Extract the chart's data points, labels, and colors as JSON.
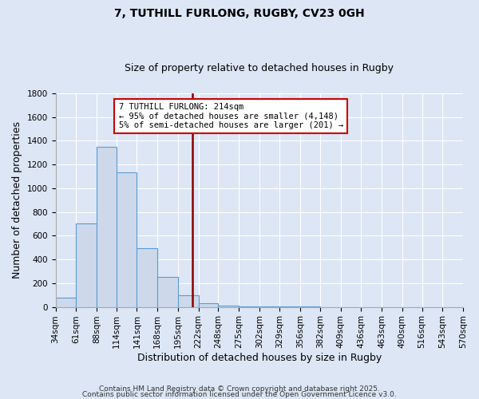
{
  "title_line1": "7, TUTHILL FURLONG, RUGBY, CV23 0GH",
  "title_line2": "Size of property relative to detached houses in Rugby",
  "xlabel": "Distribution of detached houses by size in Rugby",
  "ylabel": "Number of detached properties",
  "bar_color": "#cdd9ea",
  "bar_edge_color": "#5b9bd5",
  "property_line_color": "#8b0000",
  "property_sqm": 214,
  "annotation_box_color": "#cc0000",
  "annotation_line1": "7 TUTHILL FURLONG: 214sqm",
  "annotation_line2": "← 95% of detached houses are smaller (4,148)",
  "annotation_line3": "5% of semi-detached houses are larger (201) →",
  "ylim": [
    0,
    1800
  ],
  "yticks": [
    0,
    200,
    400,
    600,
    800,
    1000,
    1200,
    1400,
    1600,
    1800
  ],
  "bin_edges": [
    34,
    61,
    88,
    114,
    141,
    168,
    195,
    222,
    248,
    275,
    302,
    329,
    356,
    382,
    409,
    436,
    463,
    490,
    516,
    543,
    570
  ],
  "bar_heights": [
    75,
    700,
    1350,
    1130,
    495,
    255,
    100,
    28,
    8,
    4,
    2,
    1,
    1,
    0,
    0,
    0,
    0,
    0,
    0,
    0
  ],
  "footnote1": "Contains HM Land Registry data © Crown copyright and database right 2025.",
  "footnote2": "Contains public sector information licensed under the Open Government Licence v3.0.",
  "background_color": "#dce6f5",
  "grid_color": "#ffffff",
  "title_fontsize": 10,
  "subtitle_fontsize": 9,
  "tick_fontsize": 7.5,
  "ylabel_fontsize": 9,
  "xlabel_fontsize": 9,
  "footnote_fontsize": 6.5
}
